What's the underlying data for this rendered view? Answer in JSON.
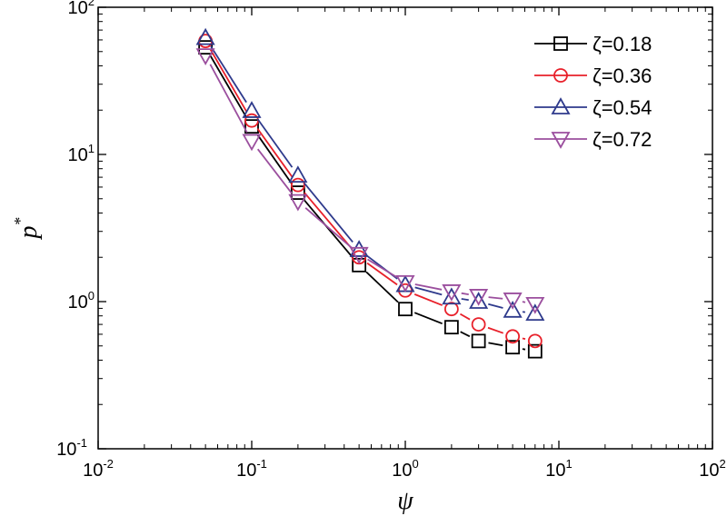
{
  "chart_data": {
    "type": "line",
    "title": "",
    "xlabel": "ψ",
    "ylabel": "p",
    "ylabel_sup": "*",
    "xscale": "log",
    "yscale": "log",
    "xlim": [
      0.01,
      100
    ],
    "ylim": [
      0.1,
      100
    ],
    "x_ticks": [
      {
        "base": "10",
        "exp": "-2",
        "v": 0.01
      },
      {
        "base": "10",
        "exp": "-1",
        "v": 0.1
      },
      {
        "base": "10",
        "exp": "0",
        "v": 1
      },
      {
        "base": "10",
        "exp": "1",
        "v": 10
      },
      {
        "base": "10",
        "exp": "2",
        "v": 100
      }
    ],
    "y_ticks": [
      {
        "base": "10",
        "exp": "-1",
        "v": 0.1
      },
      {
        "base": "10",
        "exp": "0",
        "v": 1
      },
      {
        "base": "10",
        "exp": "1",
        "v": 10
      },
      {
        "base": "10",
        "exp": "2",
        "v": 100
      }
    ],
    "grid": false,
    "legend_position": "top-right",
    "x": [
      0.05,
      0.1,
      0.2,
      0.5,
      1,
      2,
      3,
      5,
      7
    ],
    "series": [
      {
        "name": "ζ=0.18",
        "color": "#000000",
        "marker": "square",
        "values": [
          53.4,
          15.5,
          5.5,
          1.77,
          0.89,
          0.67,
          0.54,
          0.49,
          0.46
        ]
      },
      {
        "name": "ζ=0.36",
        "color": "#e8202a",
        "marker": "circle",
        "values": [
          59,
          17,
          6.2,
          2.0,
          1.19,
          0.89,
          0.7,
          0.58,
          0.54
        ]
      },
      {
        "name": "ζ=0.54",
        "color": "#2e3a8c",
        "marker": "triangle-up",
        "values": [
          62,
          19.8,
          7.2,
          2.25,
          1.3,
          1.07,
          1.0,
          0.87,
          0.83
        ]
      },
      {
        "name": "ζ=0.72",
        "color": "#9b4f9e",
        "marker": "triangle-down",
        "values": [
          47,
          12.3,
          4.8,
          2.1,
          1.35,
          1.17,
          1.09,
          1.03,
          0.96
        ]
      }
    ]
  }
}
